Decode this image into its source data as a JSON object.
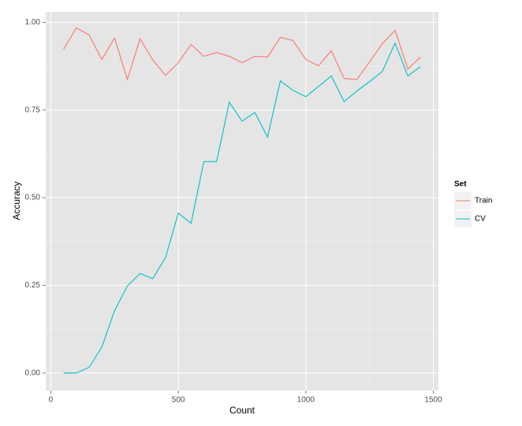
{
  "chart_data": {
    "type": "line",
    "x_label": "Count",
    "y_label": "Accuracy",
    "x": [
      50,
      100,
      150,
      200,
      250,
      300,
      350,
      400,
      450,
      500,
      550,
      600,
      650,
      700,
      750,
      800,
      850,
      900,
      950,
      1000,
      1050,
      1100,
      1150,
      1200,
      1250,
      1300,
      1350,
      1400,
      1450
    ],
    "series": [
      {
        "name": "Train",
        "color": "#F8766D",
        "values": [
          0.923,
          0.984,
          0.964,
          0.894,
          0.955,
          0.837,
          0.953,
          0.892,
          0.849,
          0.885,
          0.937,
          0.903,
          0.914,
          0.903,
          0.885,
          0.903,
          0.901,
          0.957,
          0.948,
          0.894,
          0.876,
          0.919,
          0.84,
          0.837,
          0.887,
          0.939,
          0.977,
          0.867,
          0.901
        ]
      },
      {
        "name": "CV",
        "color": "#00BFC4",
        "values": [
          0,
          0,
          0.016,
          0.074,
          0.178,
          0.248,
          0.284,
          0.269,
          0.33,
          0.456,
          0.427,
          0.603,
          0.603,
          0.772,
          0.718,
          0.743,
          0.673,
          0.833,
          0.806,
          0.788,
          0.817,
          0.847,
          0.774,
          0.804,
          0.831,
          0.86,
          0.941,
          0.847,
          0.874
        ]
      }
    ],
    "legend_title": "Set",
    "legend_position": "right",
    "xlim": [
      -20,
      1520
    ],
    "xticks": [
      0,
      500,
      1000,
      1500
    ],
    "ylim": [
      -0.05,
      1.03
    ],
    "yticks": [
      {
        "value": 0,
        "label": "0.00"
      },
      {
        "value": 0.25,
        "label": "0.25"
      },
      {
        "value": 0.5,
        "label": "0.50"
      },
      {
        "value": 0.75,
        "label": "0.75"
      },
      {
        "value": 1,
        "label": "1.00"
      }
    ],
    "grid": true
  }
}
